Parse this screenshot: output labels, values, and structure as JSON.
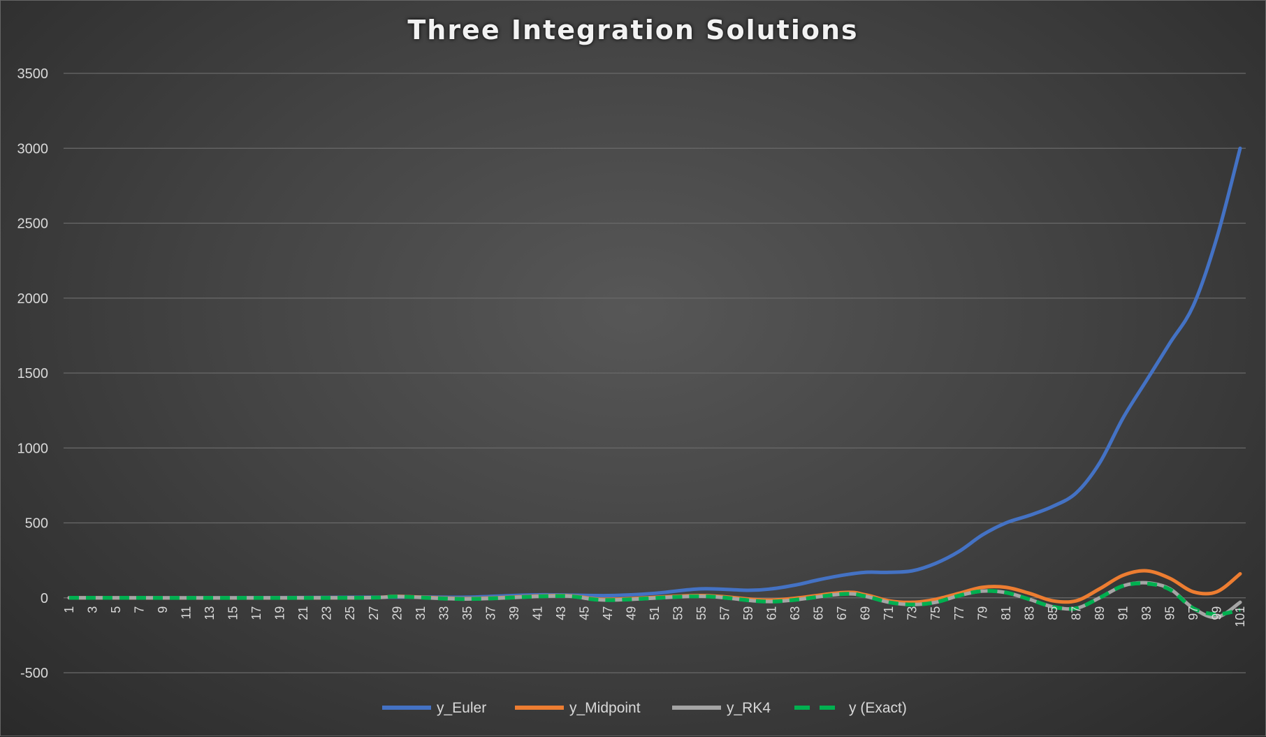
{
  "chart_data": {
    "type": "line",
    "title": "Three Integration Solutions",
    "xlabel": "",
    "ylabel": "",
    "ylim": [
      -500,
      3500
    ],
    "yticks": [
      -500,
      0,
      500,
      1000,
      1500,
      2000,
      2500,
      3000,
      3500
    ],
    "xlim": [
      1,
      101
    ],
    "xtick_step": 2,
    "grid": true,
    "legend": "bottom-center",
    "series": [
      {
        "name": "y_Euler",
        "color": "#4472c4",
        "style": "solid",
        "x": [
          1,
          13,
          21,
          31,
          35,
          41,
          47,
          51,
          55,
          59,
          61,
          63,
          65,
          67,
          69,
          71,
          73,
          75,
          77,
          79,
          81,
          83,
          85,
          87,
          89,
          91,
          93,
          95,
          97,
          99,
          101
        ],
        "y": [
          0,
          0,
          2,
          5,
          4,
          20,
          15,
          30,
          60,
          50,
          60,
          85,
          120,
          150,
          170,
          170,
          180,
          230,
          310,
          420,
          500,
          550,
          610,
          700,
          900,
          1200,
          1450,
          1700,
          1950,
          2400,
          3000
        ]
      },
      {
        "name": "y_Midpoint",
        "color": "#ed7d31",
        "style": "solid",
        "x": [
          1,
          25,
          29,
          35,
          43,
          47,
          55,
          61,
          67,
          69,
          71,
          73,
          75,
          77,
          79,
          81,
          83,
          85,
          87,
          89,
          91,
          93,
          95,
          97,
          99,
          101
        ],
        "y": [
          0,
          0,
          10,
          -5,
          15,
          -10,
          15,
          -15,
          35,
          20,
          -20,
          -30,
          -10,
          30,
          70,
          70,
          30,
          -20,
          -20,
          60,
          150,
          180,
          130,
          40,
          40,
          160
        ]
      },
      {
        "name": "y_RK4",
        "color": "#a5a5a5",
        "style": "solid",
        "x": [
          1,
          25,
          29,
          35,
          43,
          47,
          55,
          61,
          67,
          69,
          71,
          73,
          75,
          77,
          79,
          81,
          83,
          85,
          87,
          89,
          91,
          93,
          95,
          97,
          99,
          101
        ],
        "y": [
          0,
          0,
          8,
          -8,
          12,
          -15,
          10,
          -25,
          25,
          10,
          -30,
          -45,
          -30,
          15,
          45,
          35,
          -10,
          -60,
          -70,
          0,
          80,
          100,
          60,
          -70,
          -130,
          -30
        ]
      },
      {
        "name": "y (Exact)",
        "color": "#00b050",
        "style": "dashed",
        "x": [
          1,
          25,
          29,
          35,
          43,
          47,
          55,
          61,
          67,
          69,
          71,
          73,
          75,
          77,
          79,
          81,
          83,
          85,
          87,
          89,
          91,
          93,
          95,
          97,
          99,
          101
        ],
        "y": [
          0,
          0,
          8,
          -8,
          12,
          -15,
          10,
          -25,
          25,
          10,
          -30,
          -45,
          -30,
          15,
          45,
          35,
          -10,
          -60,
          -70,
          0,
          80,
          95,
          55,
          -70,
          -110,
          -80
        ]
      }
    ]
  }
}
